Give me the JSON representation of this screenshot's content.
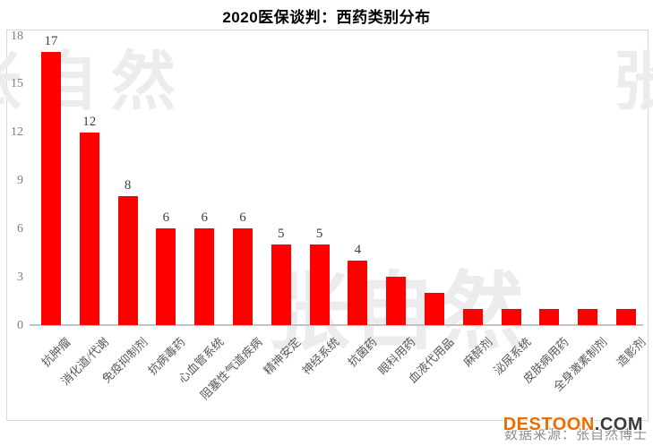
{
  "title": "2020医保谈判：西药类别分布",
  "watermark": {
    "text": "张自然"
  },
  "source": {
    "label": "数据来源：张自然博士"
  },
  "logo": {
    "brand": "DESTOON",
    "suffix": ".COM"
  },
  "colors": {
    "bar": "#fe0000",
    "logo_orange": "#ee6d00",
    "logo_dark": "#3a3a3a",
    "watermark": "#ececec"
  },
  "chart_data": {
    "type": "bar",
    "title": "2020医保谈判：西药类别分布",
    "categories": [
      "抗肿瘤",
      "消化道/代谢",
      "免疫抑制剂",
      "抗病毒药",
      "心血管系统",
      "阻塞性气道疾病",
      "精神安定",
      "神经系统",
      "抗菌药",
      "眼科用药",
      "血液代用品",
      "麻醉剂",
      "泌尿系统",
      "皮肤病用药",
      "全身激素制剂",
      "造影剂"
    ],
    "values": [
      17,
      12,
      8,
      6,
      6,
      6,
      5,
      5,
      4,
      3,
      2,
      1,
      1,
      1,
      1,
      1
    ],
    "data_labels": [
      "17",
      "12",
      "8",
      "6",
      "6",
      "6",
      "5",
      "5",
      "4",
      "",
      "",
      "",
      "",
      "",
      "",
      ""
    ],
    "yticks": [
      0,
      3,
      6,
      9,
      12,
      15,
      18
    ],
    "ylim": [
      0,
      18
    ],
    "xlabel": "",
    "ylabel": "",
    "grid": false,
    "legend": "none",
    "bar_color": "#fe0000"
  }
}
